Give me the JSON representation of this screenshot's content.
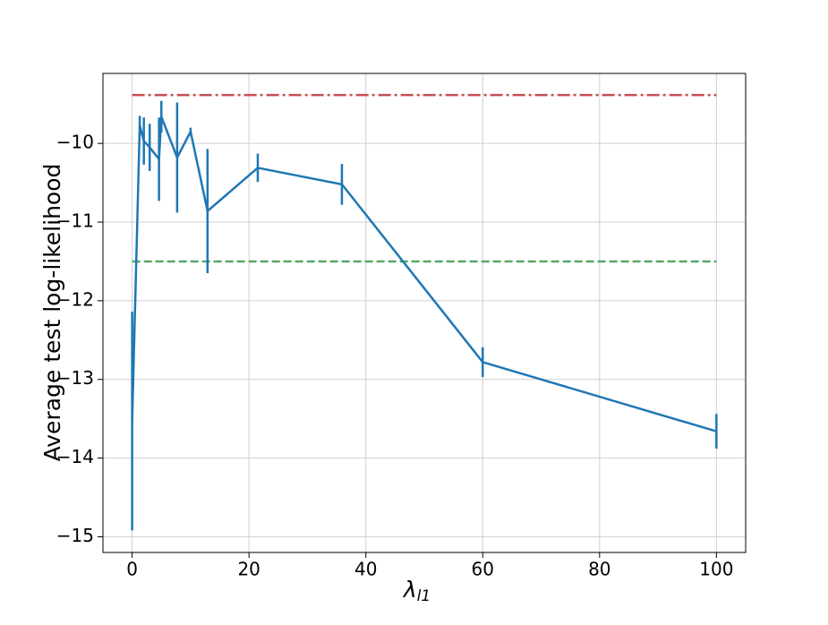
{
  "chart_data": {
    "type": "errorbar_line",
    "xlabel": "λ",
    "xlabel_sub": "l1",
    "ylabel": "Average test log-likelihood",
    "x": [
      0,
      1.3,
      2,
      3,
      4.6,
      5,
      7.7,
      10,
      12.9,
      21.5,
      35.9,
      60,
      100
    ],
    "series": [
      {
        "color": "#1f77b4",
        "values": [
          -13.53,
          -9.77,
          -9.97,
          -10.05,
          -10.2,
          -9.66,
          -10.18,
          -9.85,
          -10.86,
          -10.31,
          -10.52,
          -12.78,
          -13.66
        ],
        "errors": [
          1.39,
          0.12,
          0.3,
          0.3,
          0.53,
          0.2,
          0.7,
          0.05,
          0.79,
          0.18,
          0.26,
          0.19,
          0.22
        ]
      }
    ],
    "hlines": [
      {
        "value": -9.385,
        "color": "#c44e52",
        "style": "dashdot",
        "xrange": [
          0,
          100
        ]
      },
      {
        "value": -11.5,
        "color": "#55a868",
        "style": "dashed",
        "xrange": [
          0,
          100
        ]
      }
    ],
    "xlim": [
      -5,
      105
    ],
    "ylim": [
      -15.2,
      -9.11
    ],
    "xticks": [
      0,
      20,
      40,
      60,
      80,
      100
    ],
    "yticks": [
      {
        "value": -15,
        "label": "−15"
      },
      {
        "value": -14,
        "label": "−14"
      },
      {
        "value": -13,
        "label": "−13"
      },
      {
        "value": -12,
        "label": "−12"
      },
      {
        "value": -11,
        "label": "−11"
      },
      {
        "value": -10,
        "label": "−10"
      }
    ],
    "grid": true
  }
}
